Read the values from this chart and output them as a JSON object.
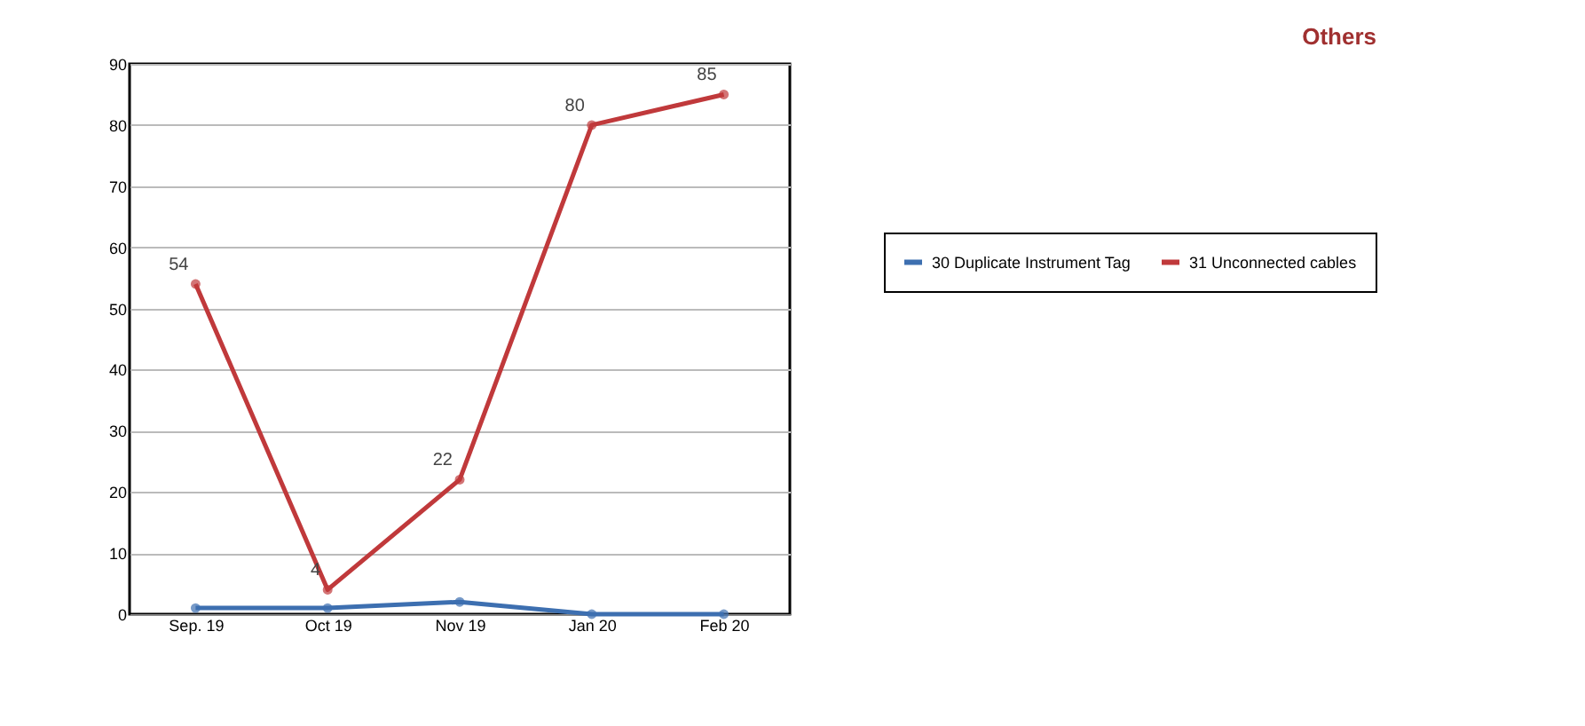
{
  "chart_data": {
    "type": "line",
    "title": "Others",
    "categories": [
      "Sep. 19",
      "Oct 19",
      "Nov 19",
      "Jan 20",
      "Feb 20"
    ],
    "series": [
      {
        "name": "30 Duplicate Instrument Tag",
        "color": "#3d6fb0",
        "values": [
          1,
          1,
          2,
          0,
          0
        ]
      },
      {
        "name": "31 Unconnected cables",
        "color": "#c0393b",
        "values": [
          54,
          4,
          22,
          80,
          85
        ],
        "value_labels": [
          "54",
          "4",
          "22",
          "80",
          "85"
        ]
      }
    ],
    "ylim": [
      0,
      90
    ],
    "yticks": [
      0,
      10,
      20,
      30,
      40,
      50,
      60,
      70,
      80,
      90
    ],
    "grid": "y",
    "legend": "right",
    "marker": "circle",
    "line_style": "solid"
  }
}
